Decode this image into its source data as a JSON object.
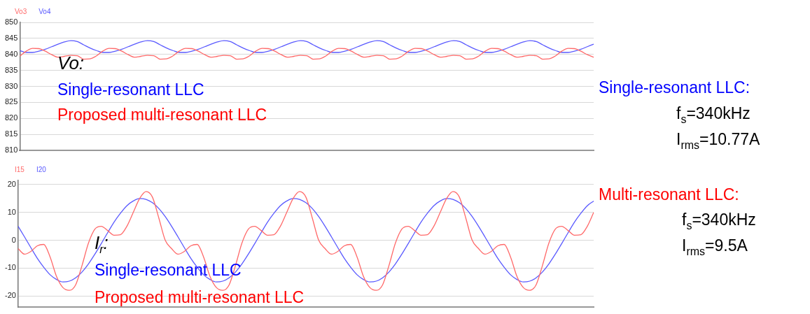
{
  "chart_data": [
    {
      "type": "line",
      "legend": "top left",
      "grid": "y",
      "tick_labels": "y",
      "marker": "none",
      "line_style": "solid",
      "categories": [
        null,
        null,
        null,
        null,
        null,
        null,
        null,
        null,
        null,
        null,
        null,
        null,
        null,
        null,
        null,
        null,
        null,
        null,
        null,
        null,
        null,
        null,
        null,
        null,
        null,
        null,
        null,
        null,
        null,
        null,
        null,
        null,
        null,
        null,
        null,
        null,
        null,
        null,
        null,
        null,
        null,
        null,
        null,
        null,
        null,
        null,
        null,
        null,
        null,
        null,
        null,
        null,
        null,
        null,
        null,
        null,
        null,
        null,
        null,
        null,
        null,
        null,
        null,
        null,
        null,
        null,
        null,
        null,
        null,
        null,
        null,
        null,
        null,
        null,
        null,
        null,
        null,
        null,
        null,
        null,
        null,
        null,
        null,
        null,
        null,
        null,
        null,
        null,
        null,
        null,
        null
      ],
      "ylim": [
        810,
        850
      ],
      "yticks": [
        810,
        815,
        820,
        825,
        830,
        835,
        840,
        845,
        850
      ],
      "series": [
        {
          "name": "Vo3",
          "color": "#ff6a6a",
          "values": [
            839.5,
            841.0,
            841.9,
            841.8,
            841.0,
            839.9,
            839.1,
            839.4,
            839.7,
            839.6,
            838.5,
            838.6,
            839.5,
            841.0,
            841.9,
            841.8,
            841.0,
            839.9,
            839.1,
            839.4,
            839.7,
            839.6,
            838.5,
            838.6,
            839.5,
            841.0,
            841.9,
            841.8,
            841.0,
            839.9,
            839.1,
            839.4,
            839.7,
            839.6,
            838.5,
            838.6,
            839.5,
            841.0,
            841.9,
            841.8,
            841.0,
            839.9,
            839.1,
            839.4,
            839.7,
            839.6,
            838.5,
            838.6,
            839.5,
            841.0,
            841.9,
            841.8,
            841.0,
            839.9,
            839.1,
            839.4,
            839.7,
            839.6,
            838.5,
            838.6,
            839.5,
            841.0,
            841.9,
            841.8,
            841.0,
            839.9,
            839.1,
            839.4,
            839.7,
            839.6,
            838.5,
            838.6,
            839.5,
            841.0,
            841.9,
            841.8,
            841.0,
            839.9,
            839.1,
            839.4,
            839.7,
            839.6,
            838.5,
            838.6,
            839.5,
            841.0,
            841.9,
            841.8,
            841.0,
            839.9,
            839.1
          ]
        },
        {
          "name": "Vo4",
          "color": "#5a5aff",
          "values": [
            841.2,
            840.6,
            840.6,
            841.0,
            841.6,
            842.4,
            843.2,
            843.9,
            844.3,
            844.0,
            843.0,
            842.0,
            841.2,
            840.6,
            840.6,
            841.0,
            841.6,
            842.4,
            843.2,
            843.9,
            844.3,
            844.0,
            843.0,
            842.0,
            841.2,
            840.6,
            840.6,
            841.0,
            841.6,
            842.4,
            843.2,
            843.9,
            844.3,
            844.0,
            843.0,
            842.0,
            841.2,
            840.6,
            840.6,
            841.0,
            841.6,
            842.4,
            843.2,
            843.9,
            844.3,
            844.0,
            843.0,
            842.0,
            841.2,
            840.6,
            840.6,
            841.0,
            841.6,
            842.4,
            843.2,
            843.9,
            844.3,
            844.0,
            843.0,
            842.0,
            841.2,
            840.6,
            840.6,
            841.0,
            841.6,
            842.4,
            843.2,
            843.9,
            844.3,
            844.0,
            843.0,
            842.0,
            841.2,
            840.6,
            840.6,
            841.0,
            841.6,
            842.4,
            843.2,
            843.9,
            844.3,
            844.0,
            843.0,
            842.0,
            841.2,
            840.6,
            840.6,
            841.0,
            841.6,
            842.4,
            843.2
          ]
        }
      ],
      "annotations": [
        "Vo:",
        "Single-resonant LLC",
        "Proposed multi-resonant LLC",
        "Single-resonant LLC:",
        "f$_{s}$=340kHz",
        "I$_{rms}$=10.77A"
      ]
    },
    {
      "type": "line",
      "legend": "top left",
      "grid": "y",
      "tick_labels": "y",
      "marker": "none",
      "line_style": "solid",
      "categories": [
        null,
        null,
        null,
        null,
        null,
        null,
        null,
        null,
        null,
        null,
        null,
        null,
        null,
        null,
        null,
        null,
        null,
        null,
        null,
        null,
        null,
        null,
        null,
        null,
        null,
        null,
        null,
        null,
        null,
        null,
        null,
        null,
        null,
        null,
        null,
        null,
        null,
        null,
        null,
        null,
        null,
        null,
        null,
        null,
        null,
        null,
        null,
        null,
        null,
        null,
        null,
        null,
        null,
        null,
        null,
        null,
        null,
        null,
        null,
        null,
        null,
        null,
        null,
        null,
        null,
        null,
        null,
        null,
        null,
        null,
        null,
        null,
        null,
        null,
        null,
        null,
        null,
        null,
        null,
        null,
        null,
        null,
        null,
        null,
        null,
        null,
        null,
        null,
        null,
        null,
        null
      ],
      "ylim": [
        -24,
        21.5
      ],
      "yticks": [
        -20,
        -10,
        0,
        10,
        20
      ],
      "series": [
        {
          "name": "I15",
          "color": "#ff6a6a",
          "values": [
            -3,
            -5,
            -4,
            -2,
            -1.5,
            -6,
            -13,
            -17,
            -18,
            -16,
            -9,
            -1,
            4,
            5,
            3.5,
            1.8,
            2,
            5,
            10,
            15,
            17.5,
            15.5,
            8,
            0,
            -3,
            -5,
            -4,
            -2,
            -1.5,
            -6,
            -13,
            -17,
            -18,
            -16,
            -9,
            -1,
            4,
            5,
            3.5,
            1.8,
            2,
            5,
            10,
            15,
            17.5,
            15.5,
            8,
            0,
            -3,
            -5,
            -4,
            -2,
            -1.5,
            -6,
            -13,
            -17,
            -18,
            -16,
            -9,
            -1,
            4,
            5,
            3.5,
            1.8,
            2,
            5,
            10,
            15,
            17.5,
            15.5,
            8,
            0,
            -3,
            -5,
            -4,
            -2,
            -1.5,
            -6,
            -13,
            -17,
            -18,
            -16,
            -9,
            -1,
            4,
            5,
            3.5,
            1.8,
            2,
            5,
            10
          ]
        },
        {
          "name": "I20",
          "color": "#5a5aff",
          "values": [
            5.0,
            1.2,
            -2.7,
            -6.5,
            -9.7,
            -12.4,
            -14.1,
            -15.0,
            -14.7,
            -13.5,
            -11.4,
            -8.5,
            -5.0,
            -1.2,
            2.7,
            6.5,
            9.7,
            12.4,
            14.1,
            15.0,
            14.7,
            13.5,
            11.4,
            8.5,
            5.0,
            1.2,
            -2.7,
            -6.5,
            -9.7,
            -12.4,
            -14.1,
            -15.0,
            -14.7,
            -13.5,
            -11.4,
            -8.5,
            -5.0,
            -1.2,
            2.7,
            6.5,
            9.7,
            12.4,
            14.1,
            15.0,
            14.7,
            13.5,
            11.4,
            8.5,
            5.0,
            1.2,
            -2.7,
            -6.5,
            -9.7,
            -12.4,
            -14.1,
            -15.0,
            -14.7,
            -13.5,
            -11.4,
            -8.5,
            -5.0,
            -1.2,
            2.7,
            6.5,
            9.7,
            12.4,
            14.1,
            15.0,
            14.7,
            13.5,
            11.4,
            8.5,
            5.0,
            1.2,
            -2.7,
            -6.5,
            -9.7,
            -12.4,
            -14.1,
            -15.0,
            -14.7,
            -13.5,
            -11.4,
            -8.5,
            -5.0,
            -1.2,
            2.7,
            6.5,
            9.7,
            12.4,
            14.1
          ]
        }
      ],
      "annotations": [
        "I$_{r}$:",
        "Single-resonant LLC",
        "Proposed multi-resonant LLC",
        "Multi-resonant LLC:",
        "f$_{s}$=340kHz",
        "I$_{rms}$=9.5A"
      ]
    }
  ]
}
